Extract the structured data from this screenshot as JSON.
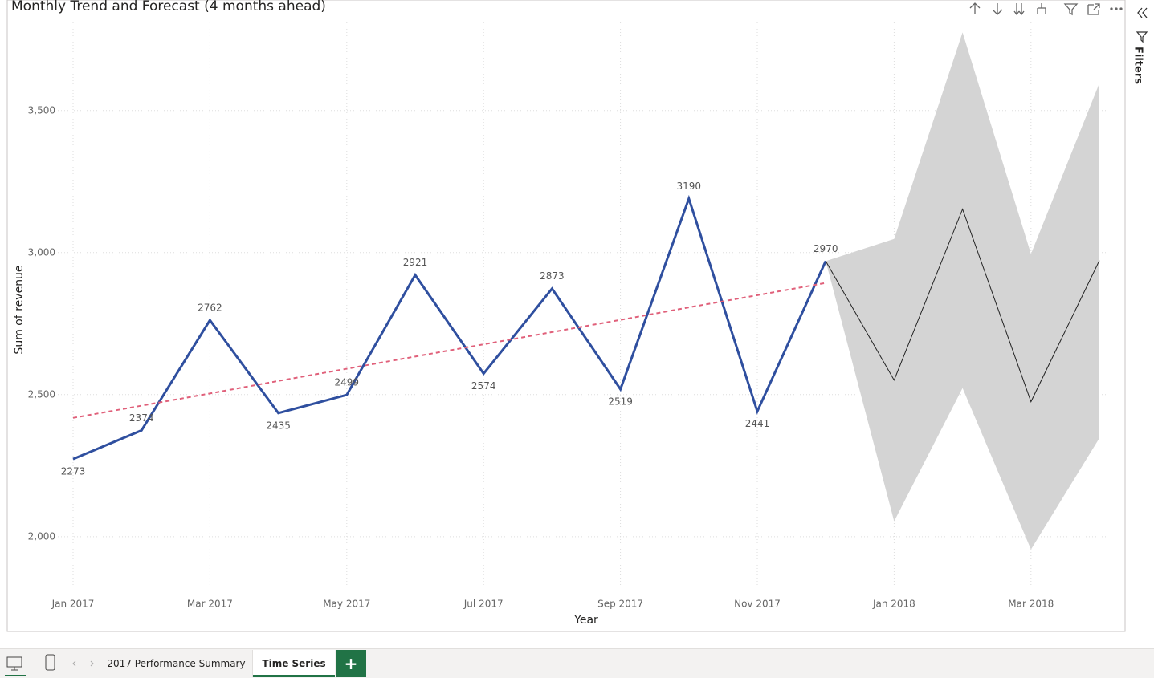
{
  "chart_data": {
    "type": "line",
    "title": "Monthly Trend and Forecast (4 months ahead)",
    "x_label": "Year",
    "y_label": "Sum of revenue",
    "categories": [
      "Jan 2017",
      null,
      "Mar 2017",
      null,
      "May 2017",
      null,
      "Jul 2017",
      null,
      "Sep 2017",
      null,
      "Nov 2017",
      null,
      "Jan 2018",
      null,
      "Mar 2018",
      null
    ],
    "series": [
      {
        "color": "#2f4f9f",
        "values": [
          2273,
          2374,
          2762,
          2435,
          2499,
          2921,
          2574,
          2873,
          2519,
          3190,
          2441,
          2970,
          null,
          null,
          null,
          null
        ]
      },
      {
        "color": "#e0607a",
        "values": [
          2418,
          2461,
          2504,
          2548,
          2591,
          2634,
          2677,
          2720,
          2763,
          2807,
          2850,
          2893,
          null,
          null,
          null,
          null
        ]
      },
      {
        "color": "#222222",
        "values": [
          null,
          null,
          null,
          null,
          null,
          null,
          null,
          null,
          null,
          null,
          null,
          2970,
          2551,
          3153,
          2475,
          2972
        ]
      }
    ],
    "band": {
      "color": "#d4d4d4",
      "upper": [
        null,
        null,
        null,
        null,
        null,
        null,
        null,
        null,
        null,
        null,
        null,
        2970,
        3048,
        3775,
        2995,
        3596
      ],
      "lower": [
        null,
        null,
        null,
        null,
        null,
        null,
        null,
        null,
        null,
        null,
        null,
        2970,
        2054,
        2523,
        1955,
        2347
      ]
    },
    "ylim": [
      1830,
      3810
    ],
    "yticks": [
      {
        "value": 2000,
        "label": "2,000"
      },
      {
        "value": 2500,
        "label": "2,500"
      },
      {
        "value": 3000,
        "label": "3,000"
      },
      {
        "value": 3500,
        "label": "3,500"
      }
    ],
    "grid": true
  },
  "filters_pane": {
    "title": "Filters"
  },
  "tabs": [
    "2017 Performance Summary",
    "Time Series"
  ],
  "active_tab": 1,
  "add_tab": "+"
}
